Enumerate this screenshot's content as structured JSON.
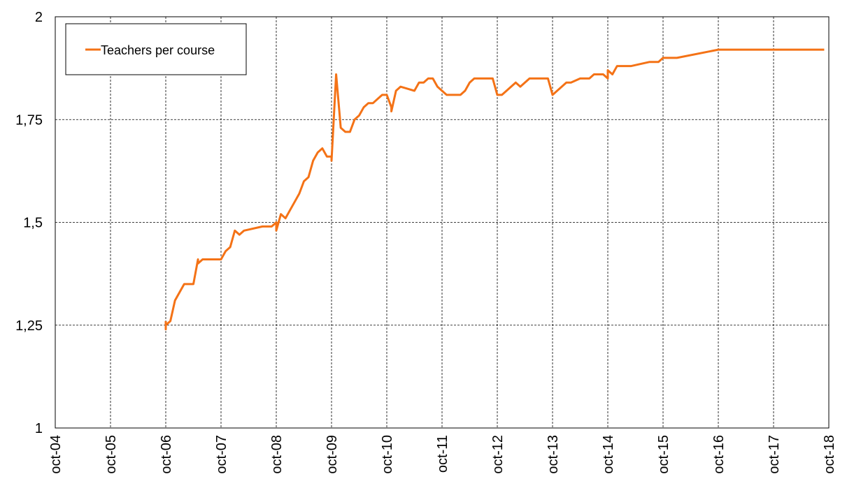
{
  "chart_data": {
    "type": "line",
    "x": [
      "2006-10",
      "2006-10",
      "2006-10",
      "2006-11",
      "2006-12",
      "2007-01",
      "2007-02",
      "2007-04",
      "2007-05",
      "2007-05",
      "2007-06",
      "2007-10",
      "2007-11",
      "2007-12",
      "2008-01",
      "2008-02",
      "2008-03",
      "2008-07",
      "2008-09",
      "2008-10",
      "2008-10",
      "2008-11",
      "2008-12",
      "2009-01",
      "2009-02",
      "2009-03",
      "2009-04",
      "2009-05",
      "2009-06",
      "2009-07",
      "2009-08",
      "2009-09",
      "2009-10",
      "2009-10",
      "2009-11",
      "2009-12",
      "2010-01",
      "2010-02",
      "2010-03",
      "2010-04",
      "2010-05",
      "2010-06",
      "2010-07",
      "2010-08",
      "2010-09",
      "2010-10",
      "2010-11",
      "2010-11",
      "2010-12",
      "2011-01",
      "2011-04",
      "2011-05",
      "2011-06",
      "2011-07",
      "2011-08",
      "2011-09",
      "2011-10",
      "2011-11",
      "2012-02",
      "2012-03",
      "2012-04",
      "2012-05",
      "2012-09",
      "2012-10",
      "2012-11",
      "2012-12",
      "2013-01",
      "2013-02",
      "2013-03",
      "2013-04",
      "2013-05",
      "2013-09",
      "2013-10",
      "2013-11",
      "2013-12",
      "2014-01",
      "2014-02",
      "2014-04",
      "2014-06",
      "2014-07",
      "2014-09",
      "2014-10",
      "2014-10",
      "2014-11",
      "2014-12",
      "2015-03",
      "2015-07",
      "2015-09",
      "2015-10",
      "2016-01",
      "2016-10",
      "2018-09"
    ],
    "series": [
      {
        "name": "Teachers per course",
        "color": "#f47216",
        "values": [
          1.26,
          1.24,
          1.25,
          1.26,
          1.31,
          1.33,
          1.35,
          1.35,
          1.41,
          1.4,
          1.41,
          1.41,
          1.43,
          1.44,
          1.48,
          1.47,
          1.48,
          1.49,
          1.49,
          1.5,
          1.48,
          1.52,
          1.51,
          1.53,
          1.55,
          1.57,
          1.6,
          1.61,
          1.65,
          1.67,
          1.68,
          1.66,
          1.66,
          1.65,
          1.86,
          1.73,
          1.72,
          1.72,
          1.75,
          1.76,
          1.78,
          1.79,
          1.79,
          1.8,
          1.81,
          1.81,
          1.78,
          1.77,
          1.82,
          1.83,
          1.82,
          1.84,
          1.84,
          1.85,
          1.85,
          1.83,
          1.82,
          1.81,
          1.81,
          1.82,
          1.84,
          1.85,
          1.85,
          1.81,
          1.81,
          1.82,
          1.83,
          1.84,
          1.83,
          1.84,
          1.85,
          1.85,
          1.81,
          1.82,
          1.83,
          1.84,
          1.84,
          1.85,
          1.85,
          1.86,
          1.86,
          1.85,
          1.87,
          1.86,
          1.88,
          1.88,
          1.89,
          1.89,
          1.9,
          1.9,
          1.92,
          1.92
        ]
      }
    ],
    "xlim": [
      "2004-10",
      "2018-10"
    ],
    "xticks": [
      {
        "value": "2004-10",
        "label": "oct-04"
      },
      {
        "value": "2005-10",
        "label": "oct-05"
      },
      {
        "value": "2006-10",
        "label": "oct-06"
      },
      {
        "value": "2007-10",
        "label": "oct-07"
      },
      {
        "value": "2008-10",
        "label": "oct-08"
      },
      {
        "value": "2009-10",
        "label": "oct-09"
      },
      {
        "value": "2010-10",
        "label": "oct-10"
      },
      {
        "value": "2011-10",
        "label": "oct-11"
      },
      {
        "value": "2012-10",
        "label": "oct-12"
      },
      {
        "value": "2013-10",
        "label": "oct-13"
      },
      {
        "value": "2014-10",
        "label": "oct-14"
      },
      {
        "value": "2015-10",
        "label": "oct-15"
      },
      {
        "value": "2016-10",
        "label": "oct-16"
      },
      {
        "value": "2017-10",
        "label": "oct-17"
      },
      {
        "value": "2018-10",
        "label": "oct-18"
      }
    ],
    "ylim": [
      1,
      2
    ],
    "yticks": [
      1,
      {
        "value": 1.25,
        "label": "1,25"
      },
      {
        "value": 1.5,
        "label": "1,5"
      },
      {
        "value": 1.75,
        "label": "1,75"
      },
      2
    ],
    "grid": true,
    "legend": "top-left"
  }
}
